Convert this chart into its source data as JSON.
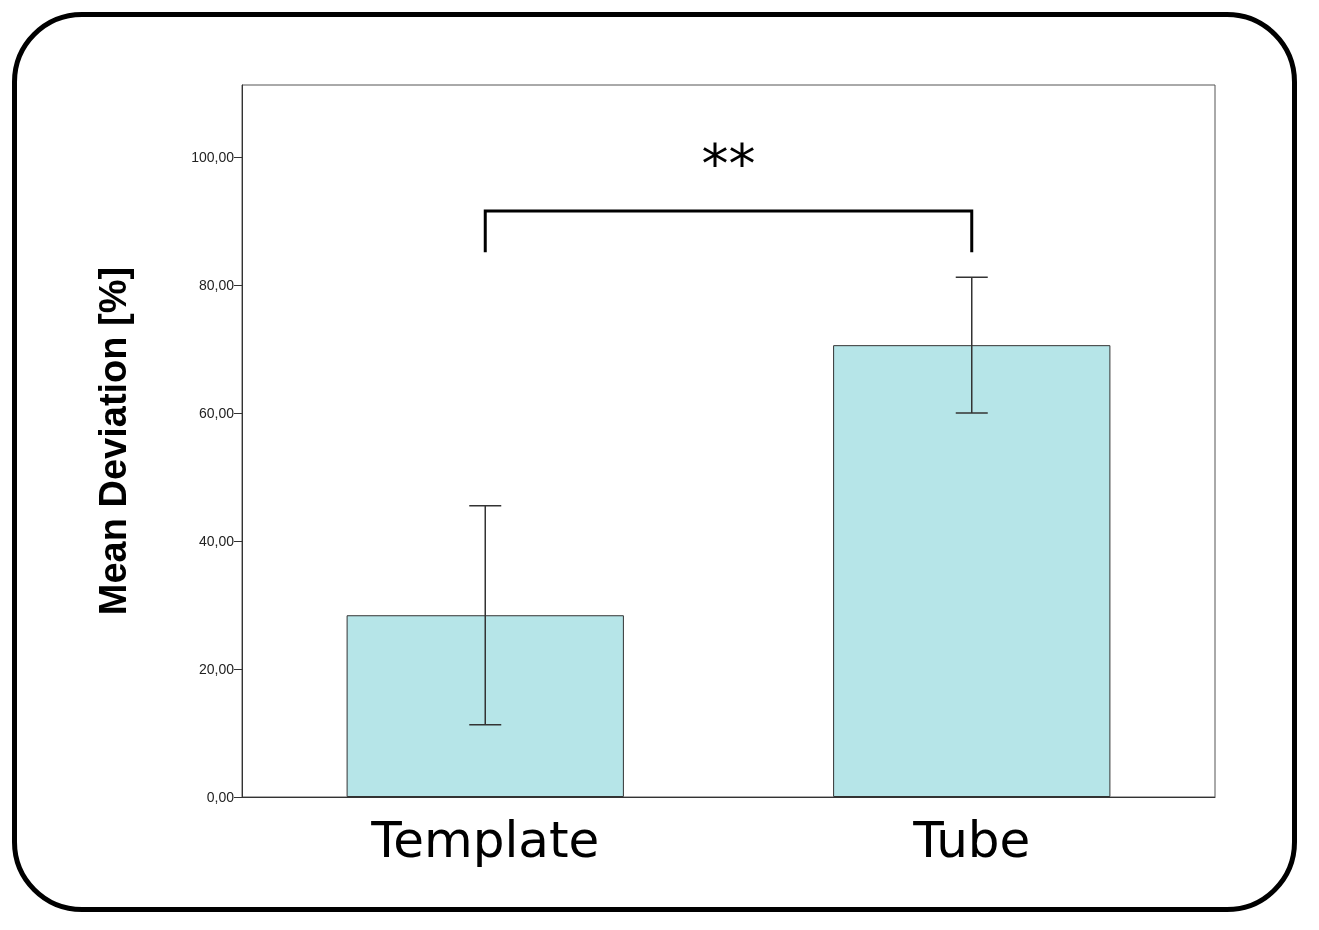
{
  "chart_data": {
    "type": "bar",
    "ylabel": "Mean Deviation [%]",
    "categories": [
      "Template",
      "Tube"
    ],
    "values": [
      28.4,
      70.6
    ],
    "errors": [
      17.1,
      10.6
    ],
    "color": "#b6e5e8",
    "ylim": [
      0,
      111.25
    ],
    "yticks": [
      {
        "value": 0,
        "label": "0,00"
      },
      {
        "value": 20,
        "label": "20,00"
      },
      {
        "value": 40,
        "label": "40,00"
      },
      {
        "value": 60,
        "label": "60,00"
      },
      {
        "value": 80,
        "label": "80,00"
      },
      {
        "value": 100,
        "label": "100,00"
      }
    ],
    "grid": false,
    "annotations": [
      "**"
    ]
  }
}
